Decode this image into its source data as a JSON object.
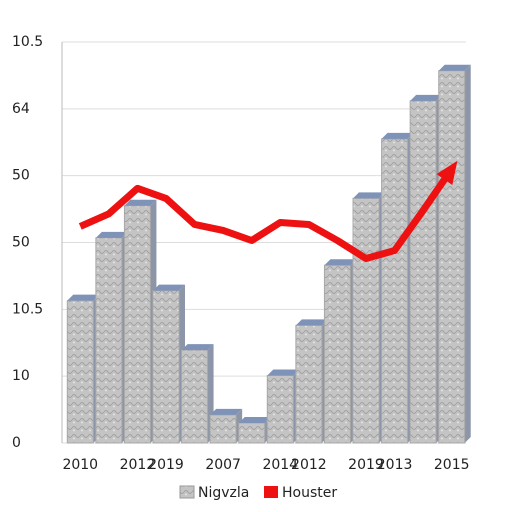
{
  "chart_data": {
    "type": "bar",
    "categories": [
      "2010",
      null,
      "2012",
      "2019",
      null,
      "2007",
      null,
      "2014",
      "2012",
      null,
      "2019",
      "2013",
      null,
      "2015"
    ],
    "series": [
      {
        "name": "Nigvzla",
        "color": "#bdbdbd",
        "values": [
          2.13,
          3.07,
          3.55,
          2.28,
          1.39,
          0.42,
          0.3,
          1.01,
          1.76,
          2.66,
          3.66,
          4.55,
          5.12,
          5.57
        ]
      },
      {
        "name": "Houster",
        "color": "#ee1111",
        "type": "line",
        "values": [
          3.24,
          3.43,
          3.81,
          3.66,
          3.27,
          3.18,
          3.03,
          3.3,
          3.27,
          3.03,
          2.76,
          2.88,
          3.48,
          4.1
        ]
      }
    ],
    "ylim": [
      0,
      6
    ],
    "yticks": [
      0,
      {
        "value": 1,
        "label": "10"
      },
      {
        "value": 2,
        "label": "10.5"
      },
      {
        "value": 3,
        "label": "50"
      },
      {
        "value": 4,
        "label": "50"
      },
      {
        "value": 5,
        "label": "64"
      },
      {
        "value": 6,
        "label": "10.5"
      }
    ],
    "grid": true
  }
}
